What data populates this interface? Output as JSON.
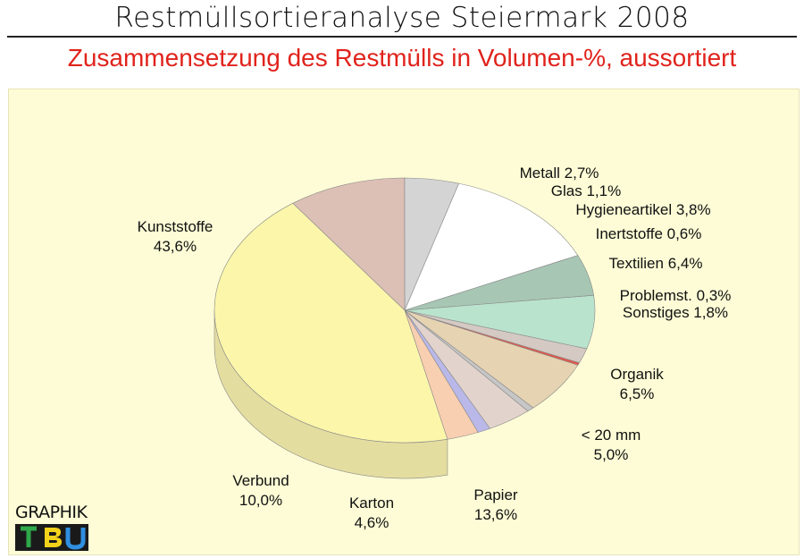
{
  "header": {
    "title": "Restmüllsortieranalyse Steiermark 2008",
    "subtitle": "Zusammensetzung des Restmülls in Volumen-%, aussortiert"
  },
  "logo": {
    "text": "GRAPHIK",
    "mark": "TBU"
  },
  "colors": {
    "title": "#111111",
    "subtitle": "#e0231c",
    "background": "#fdfcd6"
  },
  "chart_data": {
    "type": "pie",
    "title": "Zusammensetzung des Restmülls in Volumen-%, aussortiert",
    "unit": "%",
    "slices": [
      {
        "name": "Metall",
        "value": 2.7,
        "label": "Metall 2,7%",
        "color": "#f8cfb0",
        "side": "#d9ab8c"
      },
      {
        "name": "Glas",
        "value": 1.1,
        "label": "Glas 1,1%",
        "color": "#b9b8e8",
        "side": "#9594c6"
      },
      {
        "name": "Hygieneartikel",
        "value": 3.8,
        "label": "Hygieneartikel 3,8%",
        "color": "#e2d4cc",
        "side": "#bfb0a8"
      },
      {
        "name": "Inertstoffe",
        "value": 0.6,
        "label": "Inertstoffe 0,6%",
        "color": "#c6c6c6",
        "side": "#a2a2a2"
      },
      {
        "name": "Textilien",
        "value": 6.4,
        "label": "Textilien 6,4%",
        "color": "#e6d3b2",
        "side": "#c4b090"
      },
      {
        "name": "Problemst.",
        "value": 0.3,
        "label": "Problemst. 0,3%",
        "color": "#e0584a",
        "side": "#b84035"
      },
      {
        "name": "Sonstiges",
        "value": 1.8,
        "label": "Sonstiges 1,8%",
        "color": "#d4c9c3",
        "side": "#b0a59f"
      },
      {
        "name": "Organik",
        "value": 6.5,
        "label": "Organik|6,5%",
        "color": "#b9e3cd",
        "side": "#8fbea6"
      },
      {
        "name": "< 20 mm",
        "value": 5.0,
        "label": "< 20 mm|5,0%",
        "color": "#a7c6b4",
        "side": "#80a290"
      },
      {
        "name": "Papier",
        "value": 13.6,
        "label": "Papier|13,6%",
        "color": "#ffffff",
        "side": "#d6d6d6"
      },
      {
        "name": "Karton",
        "value": 4.6,
        "label": "Karton|4,6%",
        "color": "#d4d4d4",
        "side": "#b0b0b0"
      },
      {
        "name": "Verbund",
        "value": 10.0,
        "label": "Verbund|10,0%",
        "color": "#dcbfb5",
        "side": "#c2a097"
      },
      {
        "name": "Kunststoffe",
        "value": 43.6,
        "label": "Kunststoffe|43,6%",
        "color": "#fbf6aa",
        "side": "#e4dda0"
      }
    ]
  }
}
